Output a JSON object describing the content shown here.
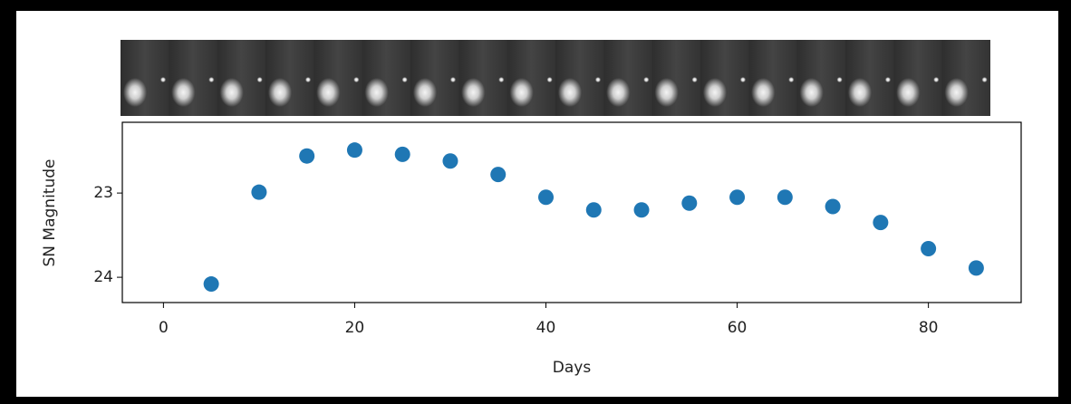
{
  "chart_data": {
    "type": "scatter",
    "x": [
      5,
      10,
      15,
      20,
      25,
      30,
      35,
      40,
      45,
      50,
      55,
      60,
      65,
      70,
      75,
      80,
      85
    ],
    "values": [
      24.08,
      22.99,
      22.56,
      22.49,
      22.54,
      22.62,
      22.78,
      23.05,
      23.2,
      23.2,
      23.12,
      23.05,
      23.05,
      23.16,
      23.35,
      23.66,
      23.89
    ],
    "color": "#1f77b4",
    "xlabel": "Days",
    "ylabel": "SN Magnitude",
    "xlim": [
      -4.3,
      89.7
    ],
    "xticks": [
      0,
      20,
      40,
      60,
      80
    ],
    "ylim": [
      24.3,
      22.16
    ],
    "yticks": [
      23,
      24
    ],
    "grid": false
  }
}
